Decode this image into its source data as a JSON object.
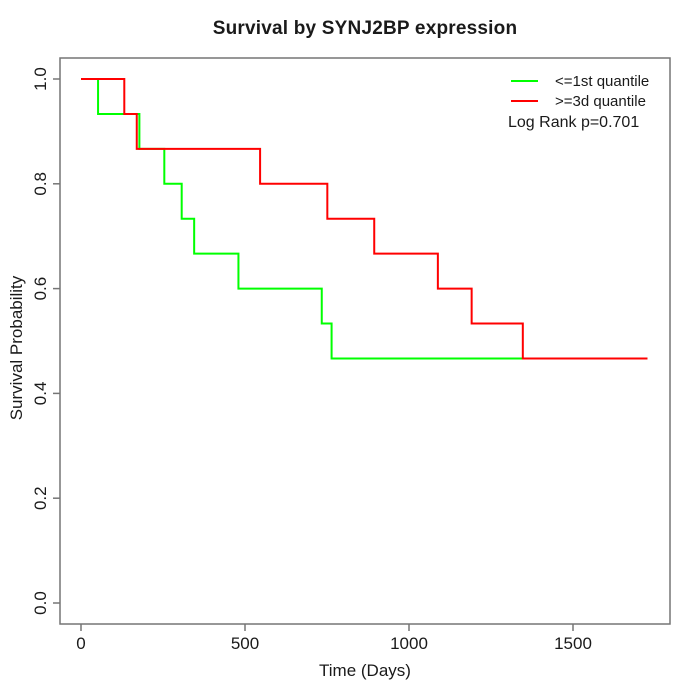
{
  "title": "Survival by SYNJ2BP expression",
  "axes": {
    "xlabel": "Time (Days)",
    "ylabel": "Survival Probability"
  },
  "legend": {
    "items": [
      {
        "label": "<=1st quantile",
        "color": "#00ff00"
      },
      {
        "label": ">=3d quantile",
        "color": "#ff0000"
      }
    ],
    "note": "Log Rank p=0.701"
  },
  "colors": {
    "group_low": "#00ff00",
    "group_high": "#ff0000",
    "axis": "#757575",
    "text": "#1a1a1a"
  },
  "chart_data": {
    "type": "line",
    "subtype": "kaplan-meier-step",
    "title": "Survival by SYNJ2BP expression",
    "xlabel": "Time (Days)",
    "ylabel": "Survival Probability",
    "xlim": [
      -70,
      1800
    ],
    "ylim": [
      -0.04,
      1.04
    ],
    "x_ticks": [
      0,
      500,
      1000,
      1500
    ],
    "y_ticks": [
      0.0,
      0.2,
      0.4,
      0.6,
      0.8,
      1.0
    ],
    "grid": false,
    "legend_position": "top-right",
    "annotation": "Log Rank p=0.701",
    "max_followup_day": 1727,
    "series": [
      {
        "name": "<=1st quantile",
        "color": "#00ff00",
        "points": [
          [
            0,
            1.0
          ],
          [
            52,
            0.9333
          ],
          [
            178,
            0.8667
          ],
          [
            254,
            0.8
          ],
          [
            307,
            0.7333
          ],
          [
            345,
            0.6667
          ],
          [
            480,
            0.6
          ],
          [
            734,
            0.5333
          ],
          [
            764,
            0.4667
          ]
        ],
        "end_day": 1727,
        "final_probability": 0.4667
      },
      {
        "name": ">=3d quantile",
        "color": "#ff0000",
        "points": [
          [
            0,
            1.0
          ],
          [
            132,
            0.9333
          ],
          [
            170,
            0.8667
          ],
          [
            546,
            0.8
          ],
          [
            751,
            0.7333
          ],
          [
            894,
            0.6667
          ],
          [
            1088,
            0.6
          ],
          [
            1191,
            0.5333
          ],
          [
            1347,
            0.4667
          ]
        ],
        "end_day": 1727,
        "final_probability": 0.4667
      }
    ]
  }
}
